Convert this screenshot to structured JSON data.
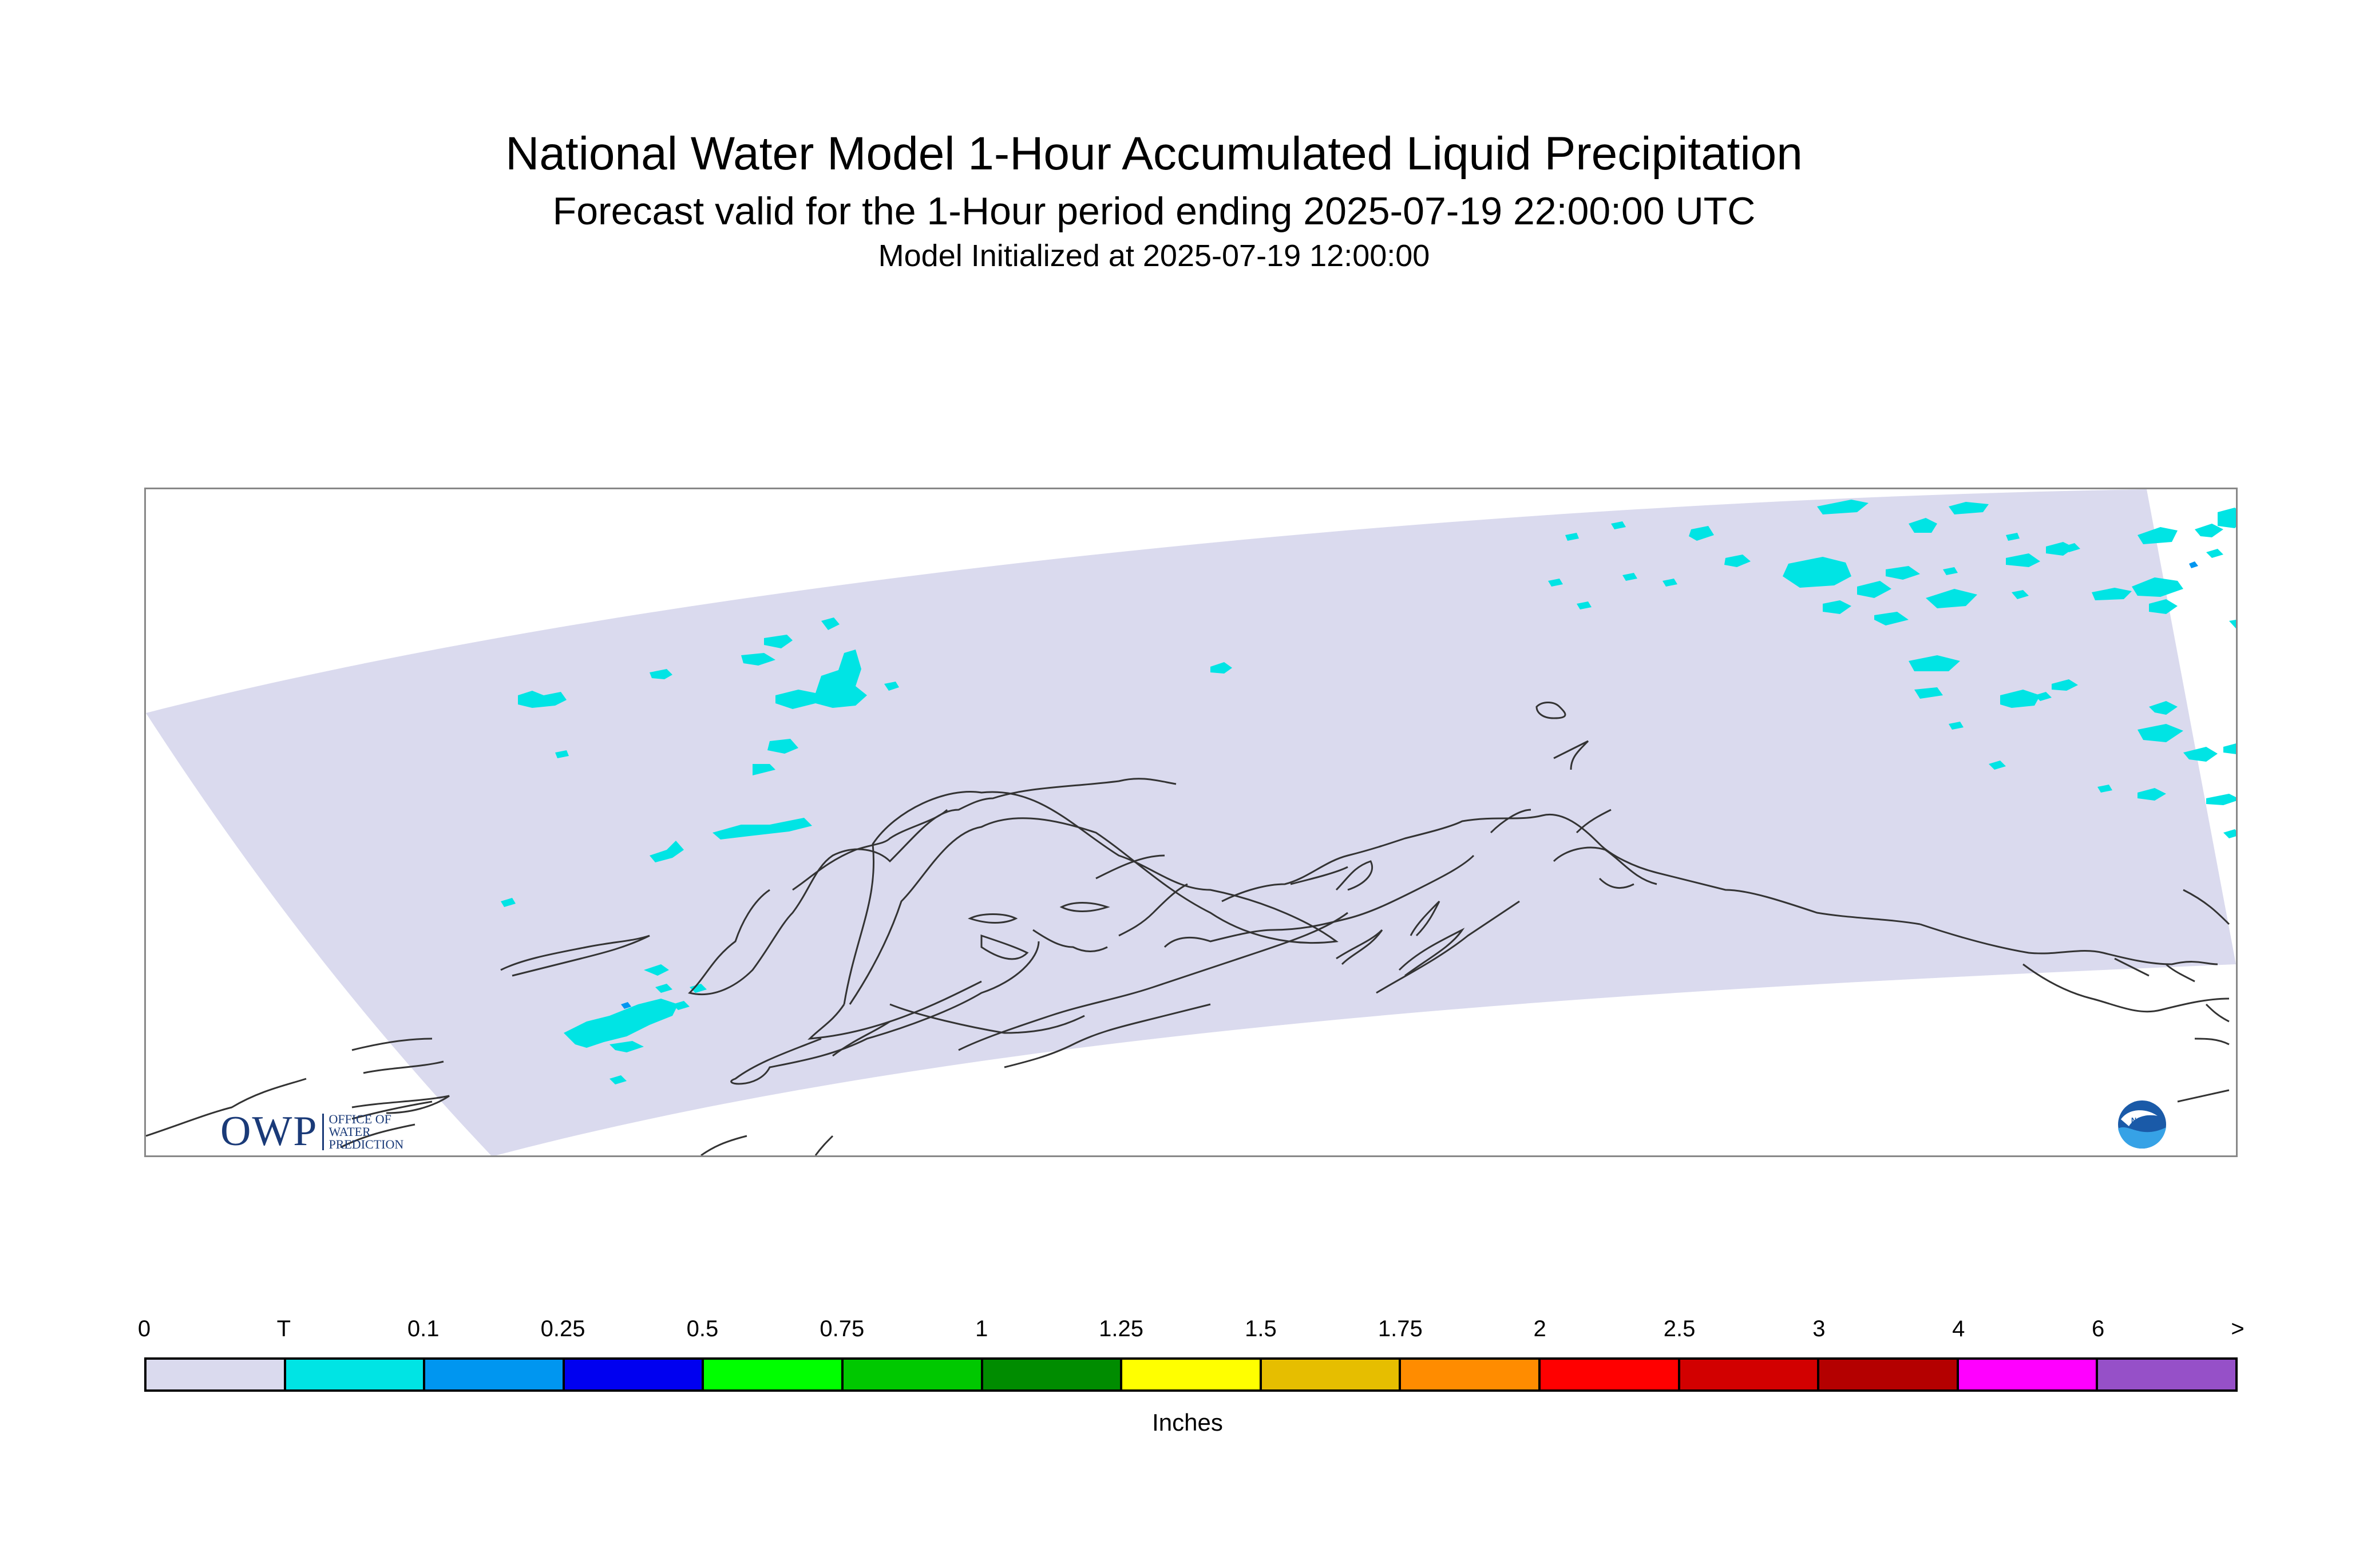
{
  "title": {
    "line1": "National Water Model 1-Hour Accumulated Liquid Precipitation",
    "line2": "Forecast valid for the 1-Hour period ending 2025-07-19 22:00:00 UTC",
    "line3": "Model Initialized at 2025-07-19 12:00:00"
  },
  "logos": {
    "owp_letters": "OWP",
    "owp_text_1": "OFFICE OF",
    "owp_text_2": "WATER",
    "owp_text_3": "PREDICTION",
    "noaa": "NOAA"
  },
  "legend": {
    "ticks": [
      "0",
      "T",
      "0.1",
      "0.25",
      "0.5",
      "0.75",
      "1",
      "1.25",
      "1.5",
      "1.75",
      "2",
      "2.5",
      "3",
      "4",
      "6",
      ">"
    ],
    "colors": [
      "#dadaee",
      "#00e4e4",
      "#0096f0",
      "#0000f0",
      "#00ff00",
      "#00c800",
      "#008c00",
      "#ffff00",
      "#e6be00",
      "#ff8c00",
      "#ff0000",
      "#d20000",
      "#b40000",
      "#ff00ff",
      "#9650c8"
    ],
    "units": "Inches"
  },
  "colors": {
    "domain_fill": "#dadaee",
    "trace_fill": "#00e4e4",
    "light_fill": "#0096f0",
    "coastline": "#333333"
  }
}
